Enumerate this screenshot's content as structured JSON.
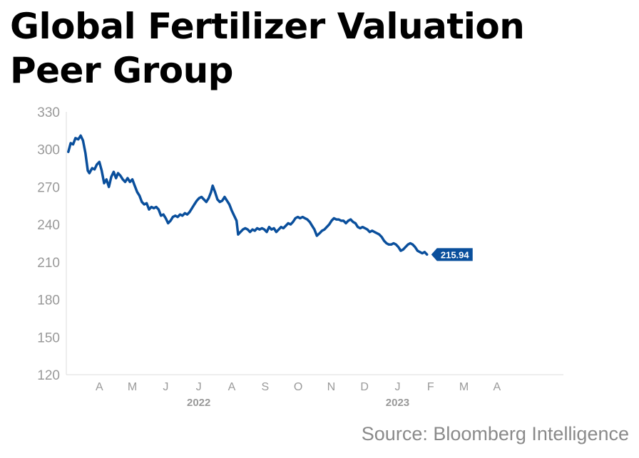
{
  "title_line1": "Global Fertilizer Valuation",
  "title_line2": "Peer Group",
  "source": "Source: Bloomberg Intelligence",
  "chart_data": {
    "type": "line",
    "title": "Global Fertilizer Valuation Peer Group",
    "xlabel": "",
    "ylabel": "",
    "ylim": [
      120,
      330
    ],
    "yticks": [
      120,
      150,
      180,
      210,
      240,
      270,
      300,
      330
    ],
    "xlim": [
      2022.167,
      2023.417
    ],
    "month_ticks": [
      {
        "label": "A",
        "x": 2022.25
      },
      {
        "label": "M",
        "x": 2022.333
      },
      {
        "label": "J",
        "x": 2022.417
      },
      {
        "label": "J",
        "x": 2022.5
      },
      {
        "label": "A",
        "x": 2022.583
      },
      {
        "label": "S",
        "x": 2022.667
      },
      {
        "label": "O",
        "x": 2022.75
      },
      {
        "label": "N",
        "x": 2022.833
      },
      {
        "label": "D",
        "x": 2022.917
      },
      {
        "label": "J",
        "x": 2023.0
      },
      {
        "label": "F",
        "x": 2023.083
      },
      {
        "label": "M",
        "x": 2023.167
      },
      {
        "label": "A",
        "x": 2023.25
      }
    ],
    "year_ticks": [
      {
        "label": "2022",
        "x": 2022.5
      },
      {
        "label": "2023",
        "x": 2023.0
      }
    ],
    "grid": false,
    "last_value_label": "215.94",
    "colors": {
      "line": "#0a4f9c",
      "label_bg": "#0a4f9c",
      "axis": "#dddddd",
      "tick_text": "#999999"
    },
    "series": [
      {
        "values": [
          [
            2022.172,
            298
          ],
          [
            2022.178,
            305
          ],
          [
            2022.184,
            304
          ],
          [
            2022.19,
            309
          ],
          [
            2022.197,
            308
          ],
          [
            2022.203,
            311
          ],
          [
            2022.209,
            307
          ],
          [
            2022.215,
            297
          ],
          [
            2022.221,
            283
          ],
          [
            2022.225,
            281
          ],
          [
            2022.232,
            285
          ],
          [
            2022.238,
            284
          ],
          [
            2022.244,
            288
          ],
          [
            2022.25,
            290
          ],
          [
            2022.256,
            283
          ],
          [
            2022.262,
            273
          ],
          [
            2022.268,
            276
          ],
          [
            2022.274,
            270
          ],
          [
            2022.28,
            278
          ],
          [
            2022.286,
            282
          ],
          [
            2022.292,
            277
          ],
          [
            2022.297,
            281
          ],
          [
            2022.303,
            279
          ],
          [
            2022.309,
            276
          ],
          [
            2022.315,
            274
          ],
          [
            2022.321,
            277
          ],
          [
            2022.327,
            274
          ],
          [
            2022.333,
            276
          ],
          [
            2022.339,
            271
          ],
          [
            2022.345,
            266
          ],
          [
            2022.351,
            263
          ],
          [
            2022.357,
            258
          ],
          [
            2022.363,
            256
          ],
          [
            2022.369,
            257
          ],
          [
            2022.375,
            252
          ],
          [
            2022.381,
            254
          ],
          [
            2022.387,
            253
          ],
          [
            2022.393,
            254
          ],
          [
            2022.399,
            252
          ],
          [
            2022.405,
            247
          ],
          [
            2022.411,
            248
          ],
          [
            2022.417,
            245
          ],
          [
            2022.423,
            241
          ],
          [
            2022.429,
            243
          ],
          [
            2022.435,
            246
          ],
          [
            2022.441,
            247
          ],
          [
            2022.447,
            246
          ],
          [
            2022.453,
            248
          ],
          [
            2022.459,
            247
          ],
          [
            2022.465,
            249
          ],
          [
            2022.471,
            248
          ],
          [
            2022.477,
            250
          ],
          [
            2022.483,
            253
          ],
          [
            2022.489,
            256
          ],
          [
            2022.495,
            259
          ],
          [
            2022.501,
            261
          ],
          [
            2022.507,
            262
          ],
          [
            2022.513,
            260
          ],
          [
            2022.519,
            258
          ],
          [
            2022.525,
            261
          ],
          [
            2022.531,
            266
          ],
          [
            2022.535,
            271
          ],
          [
            2022.541,
            266
          ],
          [
            2022.547,
            260
          ],
          [
            2022.553,
            258
          ],
          [
            2022.559,
            259
          ],
          [
            2022.565,
            262
          ],
          [
            2022.571,
            259
          ],
          [
            2022.577,
            256
          ],
          [
            2022.583,
            251
          ],
          [
            2022.589,
            247
          ],
          [
            2022.595,
            243
          ],
          [
            2022.599,
            232
          ],
          [
            2022.605,
            234
          ],
          [
            2022.611,
            236
          ],
          [
            2022.617,
            237
          ],
          [
            2022.623,
            236
          ],
          [
            2022.629,
            234
          ],
          [
            2022.635,
            236
          ],
          [
            2022.641,
            235
          ],
          [
            2022.647,
            237
          ],
          [
            2022.653,
            236
          ],
          [
            2022.659,
            237
          ],
          [
            2022.665,
            236
          ],
          [
            2022.671,
            234
          ],
          [
            2022.677,
            238
          ],
          [
            2022.683,
            236
          ],
          [
            2022.689,
            237
          ],
          [
            2022.695,
            234
          ],
          [
            2022.701,
            236
          ],
          [
            2022.707,
            238
          ],
          [
            2022.713,
            237
          ],
          [
            2022.719,
            239
          ],
          [
            2022.725,
            241
          ],
          [
            2022.731,
            240
          ],
          [
            2022.737,
            242
          ],
          [
            2022.743,
            245
          ],
          [
            2022.749,
            246
          ],
          [
            2022.755,
            245
          ],
          [
            2022.761,
            246
          ],
          [
            2022.767,
            245
          ],
          [
            2022.773,
            244
          ],
          [
            2022.779,
            242
          ],
          [
            2022.785,
            239
          ],
          [
            2022.791,
            236
          ],
          [
            2022.797,
            231
          ],
          [
            2022.804,
            233
          ],
          [
            2022.81,
            235
          ],
          [
            2022.816,
            236
          ],
          [
            2022.822,
            238
          ],
          [
            2022.828,
            240
          ],
          [
            2022.834,
            243
          ],
          [
            2022.84,
            245
          ],
          [
            2022.846,
            244
          ],
          [
            2022.852,
            244
          ],
          [
            2022.858,
            243
          ],
          [
            2022.864,
            243
          ],
          [
            2022.87,
            241
          ],
          [
            2022.876,
            243
          ],
          [
            2022.882,
            244
          ],
          [
            2022.888,
            242
          ],
          [
            2022.894,
            241
          ],
          [
            2022.9,
            238
          ],
          [
            2022.906,
            237
          ],
          [
            2022.912,
            238
          ],
          [
            2022.918,
            237
          ],
          [
            2022.924,
            236
          ],
          [
            2022.93,
            234
          ],
          [
            2022.936,
            235
          ],
          [
            2022.942,
            234
          ],
          [
            2022.948,
            233
          ],
          [
            2022.954,
            232
          ],
          [
            2022.96,
            230
          ],
          [
            2022.966,
            227
          ],
          [
            2022.972,
            225
          ],
          [
            2022.978,
            224
          ],
          [
            2022.984,
            224
          ],
          [
            2022.99,
            225
          ],
          [
            2022.996,
            224
          ],
          [
            2023.002,
            222
          ],
          [
            2023.008,
            219
          ],
          [
            2023.014,
            220
          ],
          [
            2023.02,
            222
          ],
          [
            2023.026,
            224
          ],
          [
            2023.032,
            225
          ],
          [
            2023.038,
            224
          ],
          [
            2023.044,
            222
          ],
          [
            2023.05,
            219
          ],
          [
            2023.056,
            218
          ],
          [
            2023.062,
            217
          ],
          [
            2023.068,
            218
          ],
          [
            2023.074,
            216
          ]
        ]
      }
    ]
  }
}
